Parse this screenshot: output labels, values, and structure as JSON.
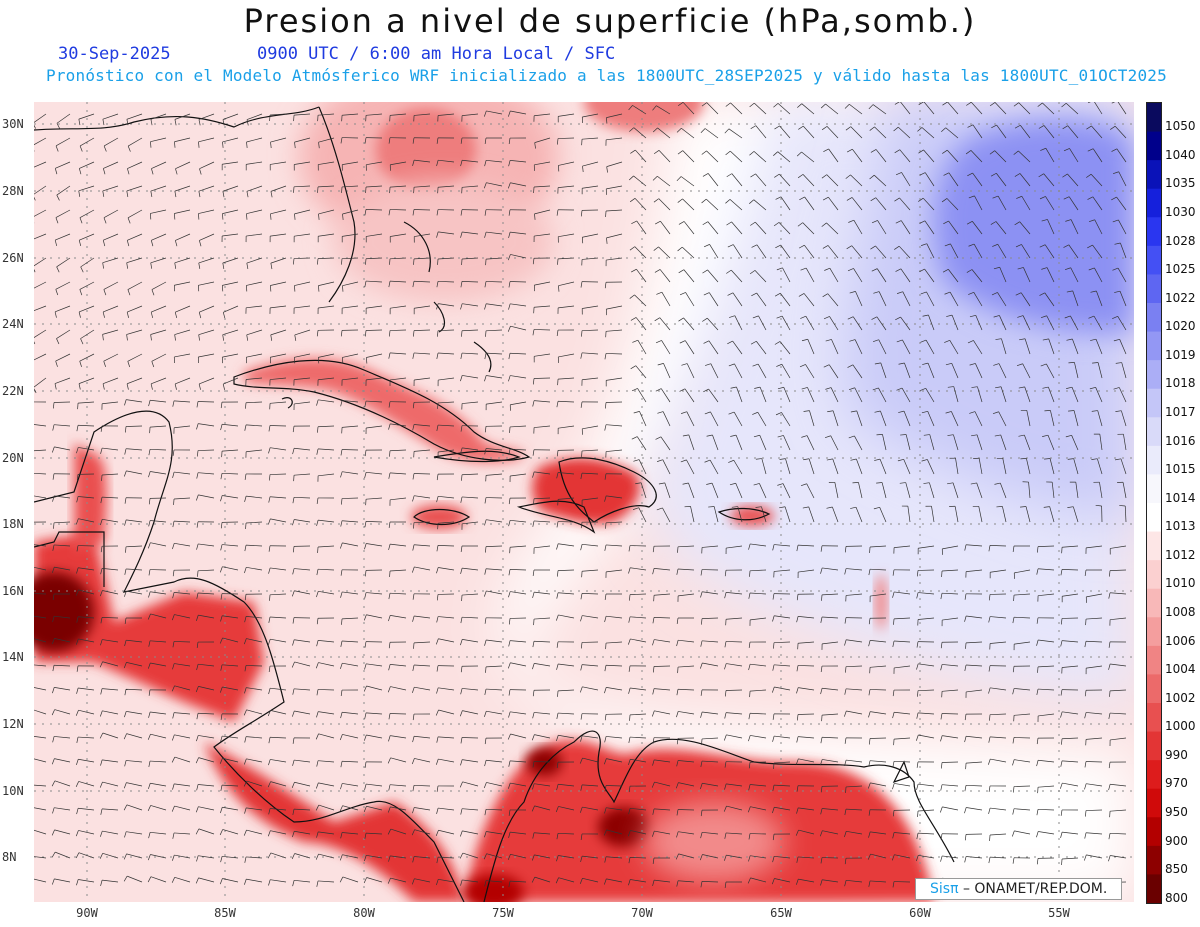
{
  "header": {
    "title": "Presion a nivel de superficie (hPa,somb.)",
    "date": "30-Sep-2025",
    "valid_time": "0900 UTC / 6:00 am Hora Local / SFC",
    "model_line": "Pronóstico con el Modelo Atmósferico WRF inicializado a las 1800UTC_28SEP2025 y válido hasta las  1800UTC_01OCT2025"
  },
  "map": {
    "lat_labels": [
      "30N",
      "28N",
      "26N",
      "24N",
      "22N",
      "20N",
      "18N",
      "16N",
      "14N",
      "12N",
      "10N",
      "8N"
    ],
    "lon_labels": [
      "90W",
      "85W",
      "80W",
      "75W",
      "70W",
      "65W",
      "60W",
      "55W"
    ],
    "grid": true,
    "wind_barbs": true
  },
  "colorbar": {
    "labels": [
      "1050",
      "1040",
      "1035",
      "1030",
      "1028",
      "1025",
      "1022",
      "1020",
      "1019",
      "1018",
      "1017",
      "1016",
      "1015",
      "1014",
      "1013",
      "1012",
      "1010",
      "1008",
      "1006",
      "1004",
      "1002",
      "1000",
      "990",
      "970",
      "950",
      "900",
      "850",
      "800"
    ],
    "colors": [
      "#0a0a5e",
      "#00008b",
      "#0a12b8",
      "#1520dc",
      "#2a36f0",
      "#4450f4",
      "#5e66f2",
      "#7a80f2",
      "#9397f4",
      "#abaef6",
      "#c4c6f8",
      "#d9daf9",
      "#eaebfb",
      "#f7f7fc",
      "#ffffff",
      "#fde6e6",
      "#fbd0d0",
      "#f8b8b8",
      "#f49e9e",
      "#f08484",
      "#ec6a6a",
      "#e85050",
      "#e33535",
      "#dd1c1c",
      "#d00a0a",
      "#b30000",
      "#8d0000",
      "#6a0000"
    ]
  },
  "credit": {
    "logo": "Sisπ",
    "org": "– ONAMET/REP.DOM."
  }
}
